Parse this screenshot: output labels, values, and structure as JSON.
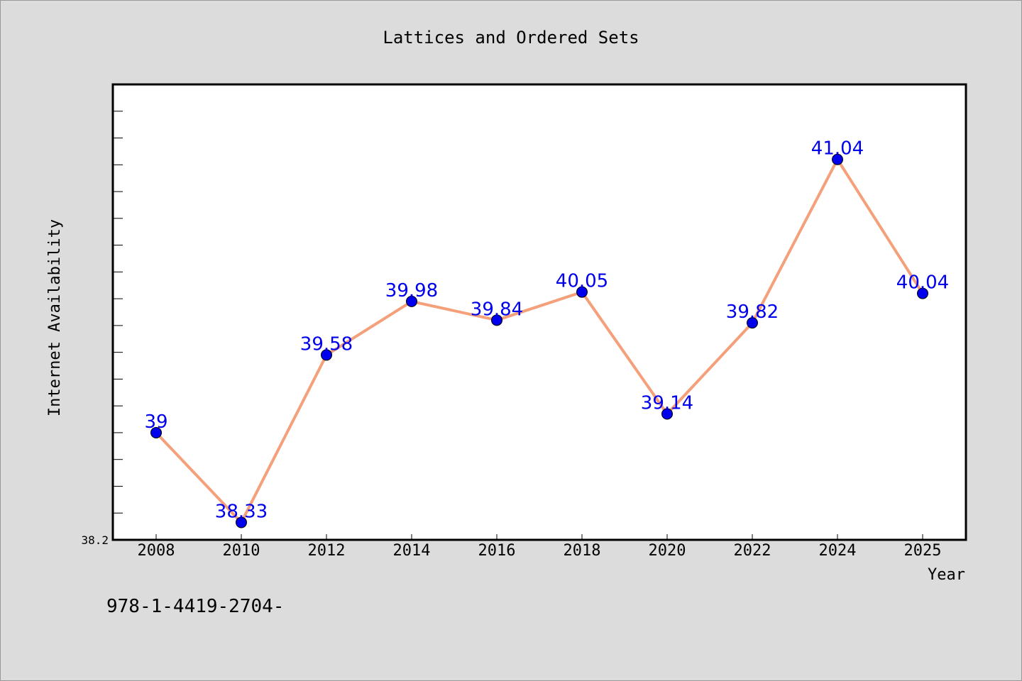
{
  "chart_data": {
    "type": "line",
    "title": "Lattices and Ordered Sets",
    "xlabel": "Year",
    "ylabel": "Internet Availability",
    "x": [
      "2008",
      "2010",
      "2012",
      "2014",
      "2016",
      "2018",
      "2020",
      "2022",
      "2024",
      "2025"
    ],
    "series": [
      {
        "values": [
          39,
          38.33,
          39.58,
          39.98,
          39.84,
          40.05,
          39.14,
          39.82,
          41.04,
          40.04
        ],
        "data_labels": [
          "39",
          "38.33",
          "39.58",
          "39.98",
          "39.84",
          "40.05",
          "39.14",
          "39.82",
          "41.04",
          "40.04"
        ]
      }
    ],
    "y_tick_labels": [
      "38.2"
    ],
    "ylim": [
      38.2,
      41.6
    ],
    "grid": false,
    "line_color": "#f4a07a",
    "marker_color": "#0000ee",
    "label_color": "#0000ee"
  },
  "footer_text": "978-1-4419-2704-"
}
